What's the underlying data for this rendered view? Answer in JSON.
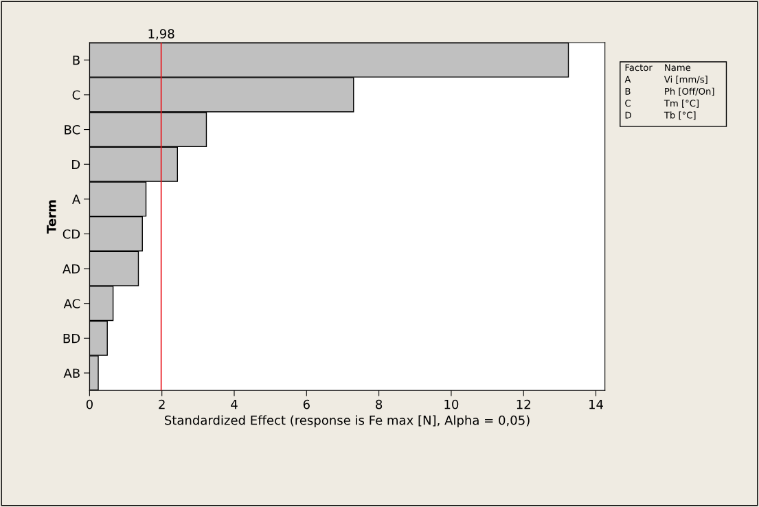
{
  "chart_data": {
    "type": "bar",
    "orientation": "horizontal",
    "xlabel": "Standardized Effect (response is Fe max [N], Alpha = 0,05)",
    "ylabel": "Term",
    "categories": [
      "B",
      "C",
      "BC",
      "D",
      "A",
      "CD",
      "AD",
      "AC",
      "BD",
      "AB"
    ],
    "values": [
      13.24,
      7.3,
      3.23,
      2.43,
      1.56,
      1.46,
      1.35,
      0.65,
      0.49,
      0.24
    ],
    "color": "#c0c0c0",
    "xlim": [
      0,
      14.25
    ],
    "xticks": [
      0,
      2,
      4,
      6,
      8,
      10,
      12,
      14
    ],
    "ref_lines": [
      {
        "axis": "x",
        "value": 1.98,
        "label": "1,98",
        "color": "#e8141b"
      }
    ],
    "annotations": [
      "Factor",
      "Name",
      "A",
      "Vi [mm/s]",
      "B",
      "Ph [Off/On]",
      "C",
      "Tm [°C]",
      "D",
      "Tb [°C]"
    ],
    "grid": false
  }
}
